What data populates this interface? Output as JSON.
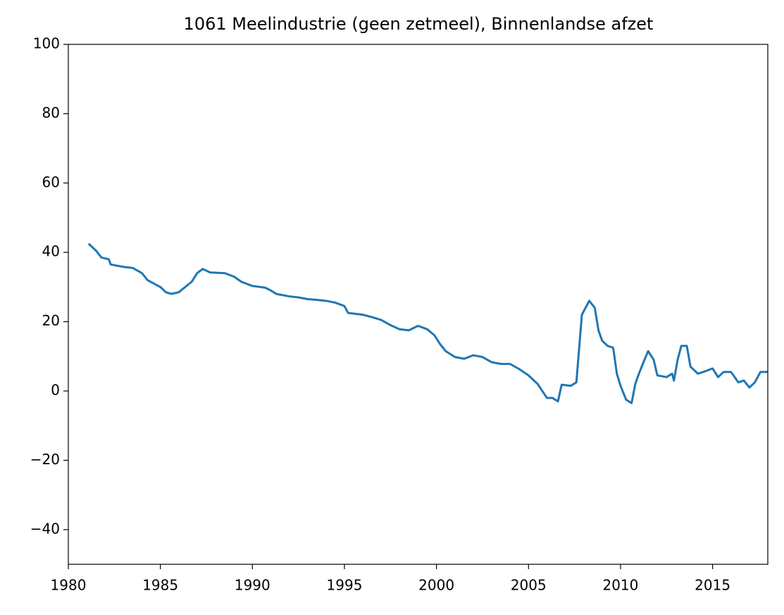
{
  "chart_data": {
    "type": "line",
    "title": "1061 Meelindustrie (geen zetmeel), Binnenlandse afzet",
    "x": [
      1981.1,
      1981.5,
      1981.8,
      1982.2,
      1982.3,
      1983,
      1983.5,
      1984,
      1984.3,
      1985,
      1985.3,
      1985.6,
      1986,
      1986.7,
      1987,
      1987.3,
      1987.7,
      1988.5,
      1989,
      1989.4,
      1990,
      1990.7,
      1991,
      1991.3,
      1992,
      1992.5,
      1993,
      1993.5,
      1994,
      1994.5,
      1995,
      1995.2,
      1996,
      1996.5,
      1997,
      1997.5,
      1998,
      1998.5,
      1999,
      1999.5,
      1999.9,
      2000.2,
      2000.5,
      2001,
      2001.5,
      2002,
      2002.5,
      2003,
      2003.5,
      2004,
      2004.5,
      2005,
      2005.5,
      2006,
      2006.3,
      2006.6,
      2006.8,
      2007.3,
      2007.6,
      2007.9,
      2008.3,
      2008.6,
      2008.8,
      2009,
      2009.3,
      2009.6,
      2009.8,
      2010,
      2010.3,
      2010.6,
      2010.8,
      2011,
      2011.3,
      2011.5,
      2011.8,
      2012,
      2012.5,
      2012.8,
      2012.9,
      2013.1,
      2013.3,
      2013.6,
      2013.8,
      2014.2,
      2014.5,
      2015,
      2015.3,
      2015.6,
      2016,
      2016.4,
      2016.7,
      2017,
      2017.3,
      2017.6,
      2018
    ],
    "series": [
      {
        "color": "#1f77b4",
        "values": [
          42.5,
          40.5,
          38.5,
          38,
          36.5,
          35.8,
          35.5,
          34,
          32,
          30,
          28.5,
          28,
          28.5,
          31.5,
          34,
          35.2,
          34.2,
          34,
          33,
          31.5,
          30.3,
          29.8,
          29,
          28,
          27.3,
          27,
          26.5,
          26.3,
          26,
          25.5,
          24.5,
          22.5,
          22,
          21.3,
          20.5,
          19,
          17.8,
          17.5,
          18.8,
          17.8,
          16,
          13.5,
          11.5,
          9.8,
          9.3,
          10.3,
          9.8,
          8.3,
          7.8,
          7.8,
          6.3,
          4.5,
          2,
          -2,
          -2,
          -3,
          1.8,
          1.5,
          2.5,
          22,
          26,
          24,
          17.5,
          14.5,
          13,
          12.5,
          5,
          1.5,
          -2.5,
          -3.5,
          2,
          5,
          9,
          11.5,
          9,
          4.5,
          4,
          5,
          3,
          9,
          13,
          13,
          7,
          5,
          5.5,
          6.5,
          4,
          5.5,
          5.5,
          2.5,
          3,
          1,
          2.5,
          5.5,
          5.5
        ]
      }
    ],
    "xlim": [
      1980,
      2018
    ],
    "xticks": [
      1980,
      1985,
      1990,
      1995,
      2000,
      2005,
      2010,
      2015
    ],
    "ylim": [
      -50,
      100
    ],
    "yticks": [
      {
        "value": -40,
        "label": "−40"
      },
      {
        "value": -20,
        "label": "−20"
      },
      0,
      20,
      40,
      60,
      80,
      100
    ],
    "grid": false
  }
}
